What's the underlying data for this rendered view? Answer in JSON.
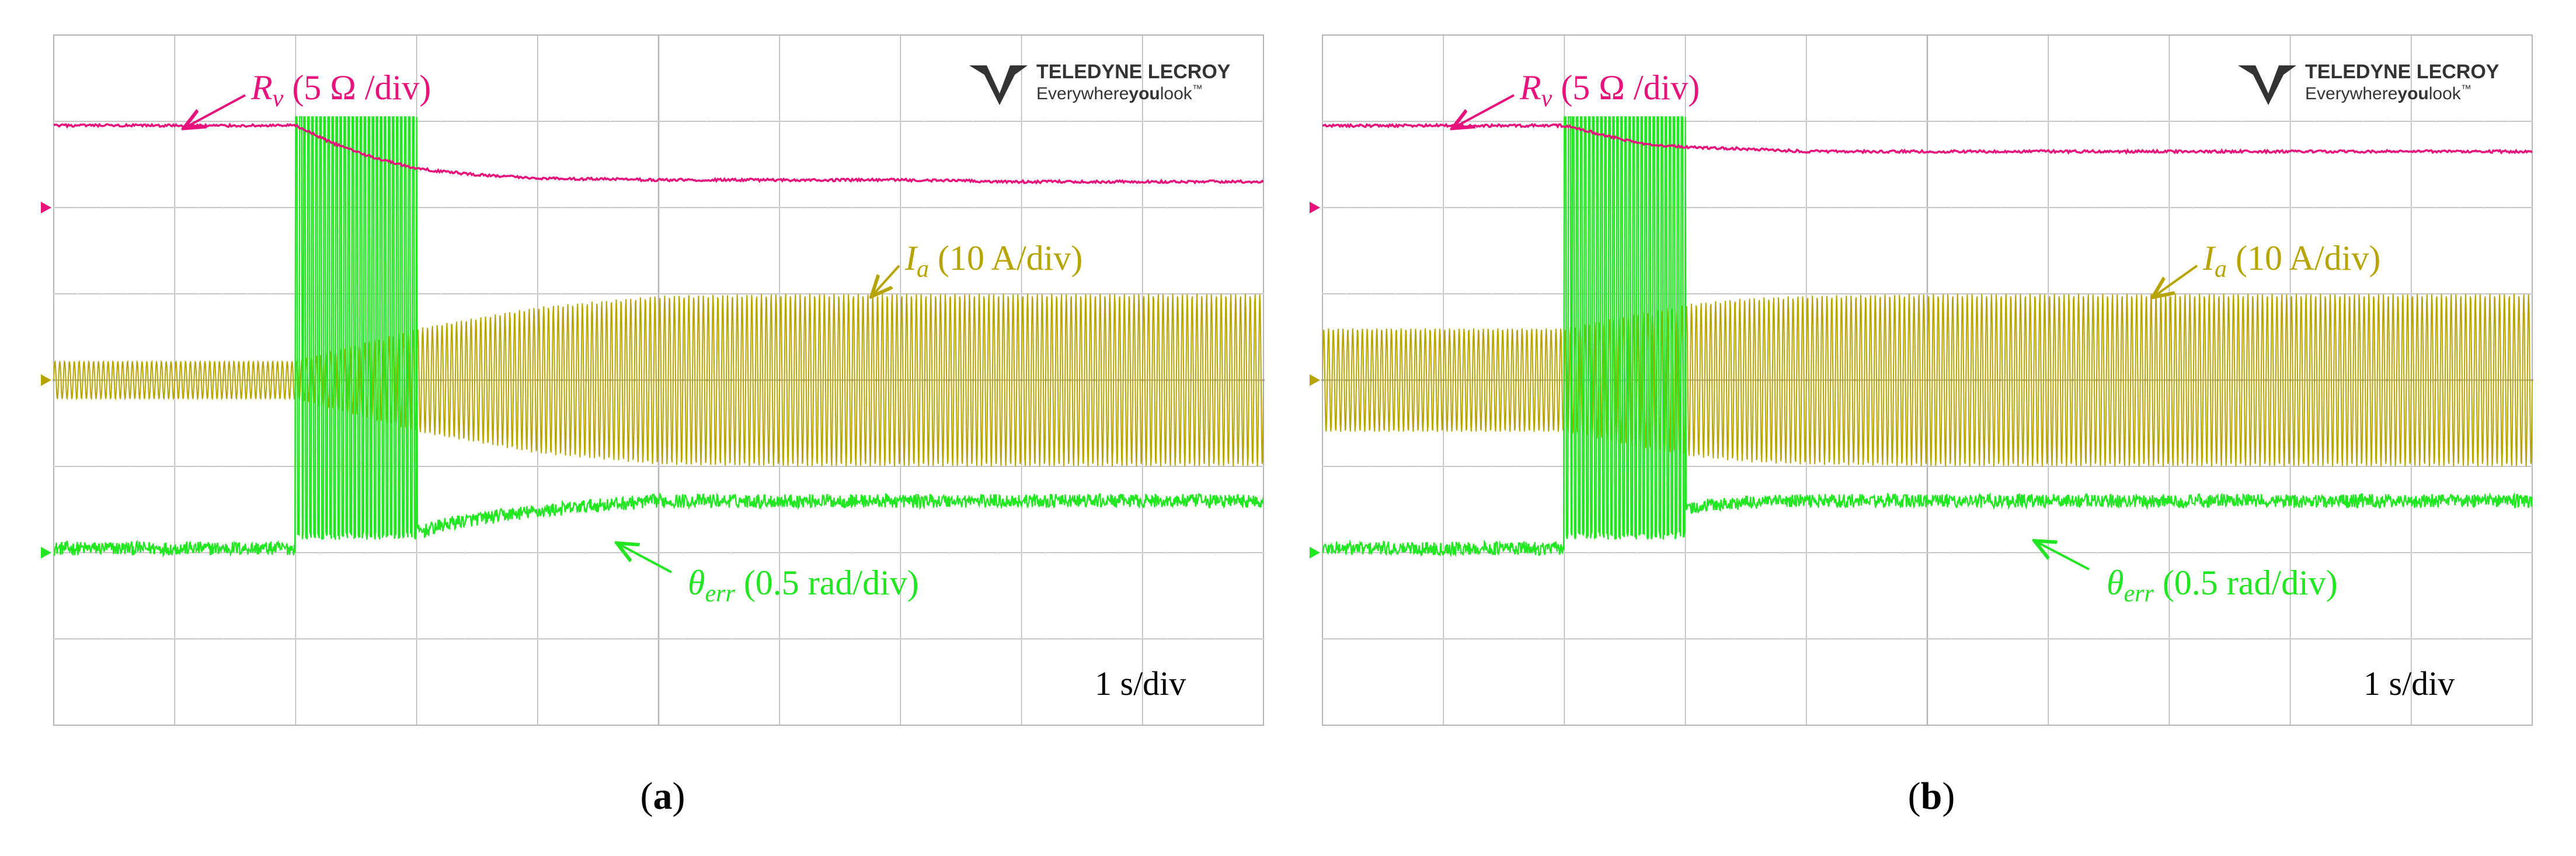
{
  "figure": {
    "panels": [
      {
        "id": "a",
        "caption": "(a)",
        "caption_parts": {
          "open": "(",
          "letter": "a",
          "close": ")"
        },
        "logo": {
          "line1": "TELEDYNE LECROY",
          "line2_a": "Everywhere",
          "line2_b": "you",
          "line2_c": "look",
          "tm": "™"
        },
        "labels": {
          "rv": {
            "sym": "R",
            "sub": "v",
            "text": " (5 Ω /div)"
          },
          "ia": {
            "sym": "I",
            "sub": "a",
            "text": " (10 A/div)"
          },
          "theta": {
            "sym": "θ",
            "sub": "err",
            "text": " (0.5 rad/div)"
          },
          "timebase": "1 s/div"
        }
      },
      {
        "id": "b",
        "caption": "(b)",
        "caption_parts": {
          "open": "(",
          "letter": "b",
          "close": ")"
        },
        "logo": {
          "line1": "TELEDYNE LECROY",
          "line2_a": "Everywhere",
          "line2_b": "you",
          "line2_c": "look",
          "tm": "™"
        },
        "labels": {
          "rv": {
            "sym": "R",
            "sub": "v",
            "text": " (5 Ω /div)"
          },
          "ia": {
            "sym": "I",
            "sub": "a",
            "text": " (10 A/div)"
          },
          "theta": {
            "sym": "θ",
            "sub": "err",
            "text": " (0.5 rad/div)"
          },
          "timebase": "1 s/div"
        }
      }
    ],
    "colors": {
      "rv": "#e8127c",
      "ia": "#b8a400",
      "theta": "#22e622",
      "grid": "#b4b4b4",
      "marker_rv": "#e8127c",
      "marker_ia": "#b8a400",
      "marker_theta": "#22e622"
    }
  },
  "chart_data": [
    {
      "type": "line",
      "panel": "a",
      "x_unit": "div (1 s/div)",
      "xlim": [
        0,
        10
      ],
      "ylim": [
        -4,
        4
      ],
      "grid": true,
      "series": [
        {
          "name": "R_v",
          "scale": "5 Ω /div",
          "x": [
            0,
            1,
            2,
            2.3,
            2.6,
            3.0,
            3.5,
            4,
            5,
            6,
            7,
            8,
            9,
            10
          ],
          "y": [
            2.95,
            2.95,
            2.95,
            2.75,
            2.6,
            2.45,
            2.38,
            2.34,
            2.32,
            2.32,
            2.32,
            2.3,
            2.3,
            2.3
          ]
        },
        {
          "name": "I_a envelope",
          "scale": "10 A/div",
          "x": [
            0,
            2,
            3,
            4,
            5,
            6,
            7,
            8,
            9,
            10
          ],
          "amplitude": [
            0.22,
            0.22,
            0.6,
            0.85,
            0.98,
            1.0,
            1.0,
            1.0,
            1.0,
            1.0
          ]
        },
        {
          "name": "θ_err",
          "scale": "0.5 rad/div",
          "x": [
            0,
            1,
            2,
            3.05,
            3.3,
            3.8,
            4.5,
            5,
            6,
            7,
            8,
            9,
            10
          ],
          "y": [
            -1.95,
            -1.95,
            -1.95,
            -1.75,
            -1.65,
            -1.55,
            -1.45,
            -1.4,
            -1.4,
            -1.4,
            -1.4,
            -1.4,
            -1.4
          ]
        }
      ],
      "transient": {
        "x_start": 2.0,
        "x_end": 3.0,
        "note": "θ_err oscillates over full range"
      }
    },
    {
      "type": "line",
      "panel": "b",
      "x_unit": "div (1 s/div)",
      "xlim": [
        0,
        10
      ],
      "ylim": [
        -4,
        4
      ],
      "grid": true,
      "series": [
        {
          "name": "R_v",
          "scale": "5 Ω /div",
          "x": [
            0,
            1,
            2,
            2.3,
            2.6,
            3.0,
            3.5,
            4,
            5,
            6,
            7,
            8,
            9,
            10
          ],
          "y": [
            2.95,
            2.95,
            2.95,
            2.85,
            2.75,
            2.7,
            2.68,
            2.65,
            2.65,
            2.65,
            2.65,
            2.65,
            2.65,
            2.65
          ]
        },
        {
          "name": "I_a envelope",
          "scale": "10 A/div",
          "x": [
            0,
            2,
            2.5,
            3,
            3.5,
            4,
            5,
            6,
            7,
            8,
            9,
            10
          ],
          "amplitude": [
            0.6,
            0.6,
            0.75,
            0.88,
            0.95,
            0.98,
            1.0,
            1.0,
            1.0,
            1.0,
            1.0,
            1.0
          ]
        },
        {
          "name": "θ_err",
          "scale": "0.5 rad/div",
          "x": [
            0,
            1,
            2,
            3.0,
            3.2,
            3.5,
            4,
            5,
            6,
            7,
            8,
            9,
            10
          ],
          "y": [
            -1.95,
            -1.95,
            -1.95,
            -1.5,
            -1.45,
            -1.42,
            -1.4,
            -1.4,
            -1.4,
            -1.4,
            -1.4,
            -1.4,
            -1.4
          ]
        }
      ],
      "transient": {
        "x_start": 2.0,
        "x_end": 3.0,
        "note": "θ_err oscillates over full range"
      }
    }
  ]
}
